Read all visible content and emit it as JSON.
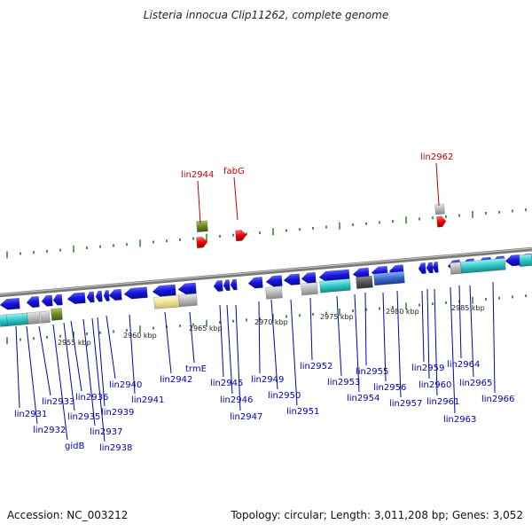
{
  "title": "Listeria innocua Clip11262, complete genome",
  "footer": {
    "accession": "Accession: NC_003212",
    "topology": "Topology: circular; Length: 3,011,208 bp; Genes: 3,052"
  },
  "scale_labels": [
    "2955 kbp",
    "2960 kbp",
    "2965 kbp",
    "2970 kbp",
    "2975 kbp",
    "2980 kbp",
    "2985 kbp"
  ],
  "highlighted_genes": [
    "lin2944",
    "fabG",
    "lin2962"
  ],
  "gene_labels": [
    "lin2931",
    "lin2932",
    "lin2933",
    "gidB",
    "lin2935",
    "lin2936",
    "lin2937",
    "lin2938",
    "lin2939",
    "lin2940",
    "lin2941",
    "lin2942",
    "trmE",
    "lin2945",
    "lin2946",
    "lin2947",
    "lin2949",
    "lin2950",
    "lin2951",
    "lin2952",
    "lin2953",
    "lin2954",
    "lin2955",
    "lin2956",
    "lin2957",
    "lin2959",
    "lin2960",
    "lin2961",
    "lin2963",
    "lin2964",
    "lin2965",
    "lin2966"
  ],
  "colors": {
    "cds": "#1515e0",
    "rna": "#30c8c8",
    "pseudo": "#b8b8b8",
    "olive": "#6a8a20",
    "highlight": "#ee0000",
    "backbone": "#888888",
    "tick": "#1a7a1a",
    "label_blue": "#0000b8",
    "label_red": "#c00000"
  }
}
